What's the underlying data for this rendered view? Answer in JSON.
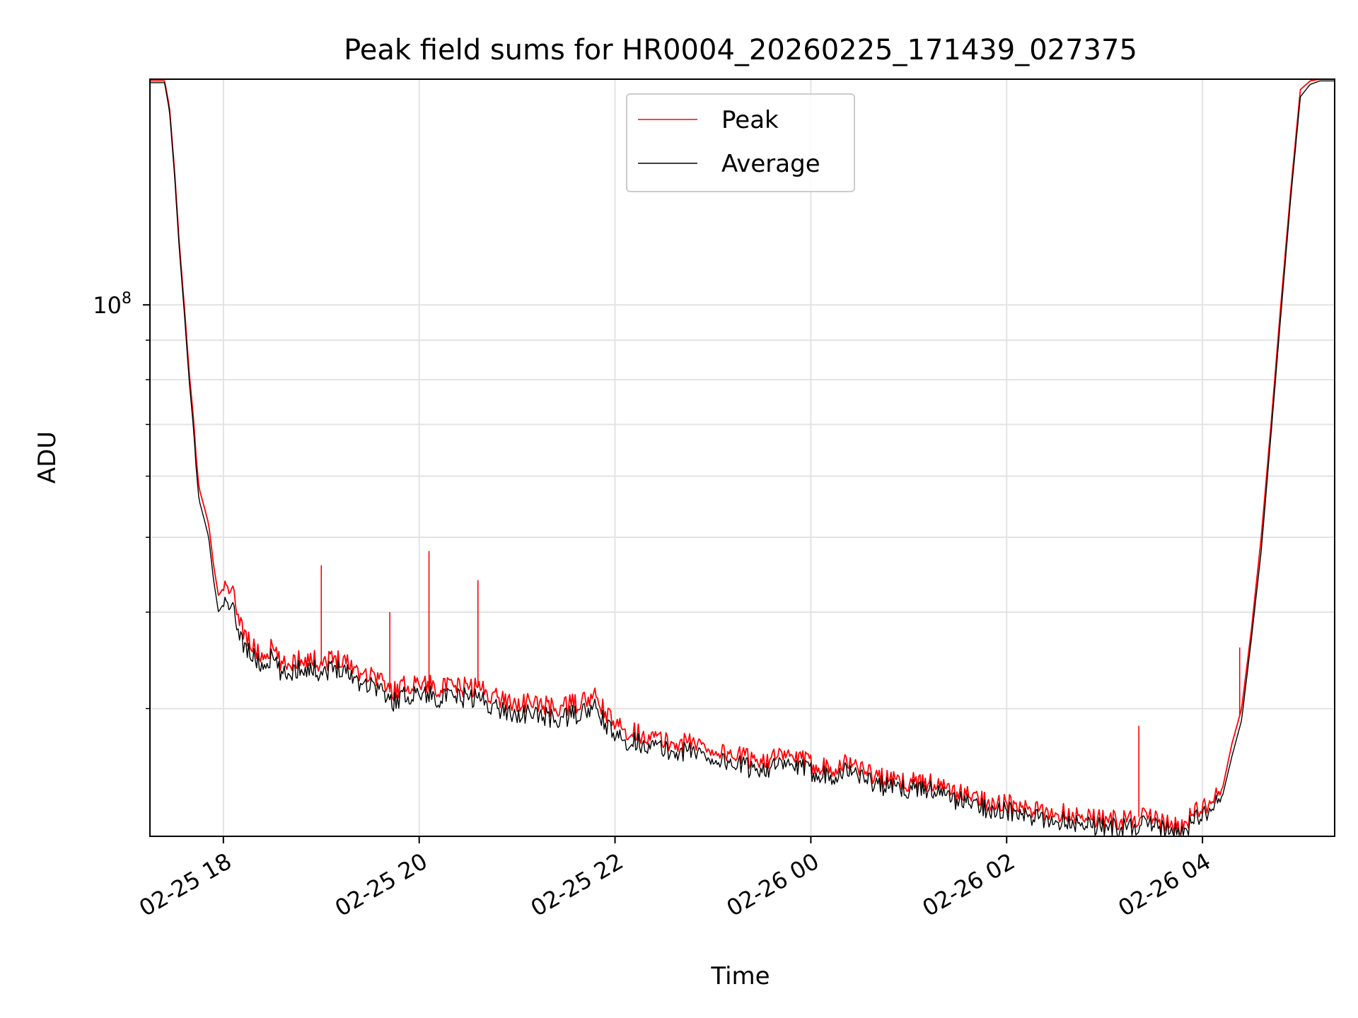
{
  "chart_data": {
    "type": "line",
    "title": "Peak field sums for HR0004_20260225_171439_027375",
    "xlabel": "Time",
    "ylabel": "ADU",
    "yscale": "log",
    "grid": true,
    "legend_position": "top-center",
    "x_unit": "hours since 02-25 18:00",
    "xlim": [
      -0.75,
      11.35
    ],
    "ylim": [
      20500000,
      196000000
    ],
    "x_ticks": [
      0,
      2,
      4,
      6,
      8,
      10
    ],
    "x_tick_labels": [
      "02-25 18",
      "02-25 20",
      "02-25 22",
      "02-26 00",
      "02-26 02",
      "02-26 04"
    ],
    "y_major_ticks": [
      100000000
    ],
    "y_major_tick_labels": [
      "10",
      "8"
    ],
    "y_minor_ticks": [
      30000000,
      40000000,
      50000000,
      60000000,
      70000000,
      80000000,
      90000000,
      200000000
    ],
    "series": [
      {
        "name": "Peak",
        "color": "#ff0000",
        "x": [
          -0.75,
          -0.6,
          -0.55,
          -0.5,
          -0.45,
          -0.4,
          -0.35,
          -0.3,
          -0.28,
          -0.25,
          -0.2,
          -0.15,
          -0.1,
          -0.05,
          0.0,
          0.1,
          0.2,
          0.3,
          0.4,
          0.5,
          0.6,
          0.8,
          1.0,
          1.2,
          1.4,
          1.6,
          1.7,
          1.8,
          2.0,
          2.2,
          2.4,
          2.6,
          2.8,
          3.0,
          3.2,
          3.4,
          3.6,
          3.8,
          4.0,
          4.2,
          4.4,
          4.6,
          4.8,
          5.0,
          5.2,
          5.4,
          5.6,
          5.8,
          6.0,
          6.2,
          6.4,
          6.6,
          6.8,
          7.0,
          7.2,
          7.4,
          7.6,
          7.8,
          8.0,
          8.2,
          8.4,
          8.6,
          8.8,
          9.0,
          9.2,
          9.4,
          9.6,
          9.8,
          9.9,
          10.0,
          10.1,
          10.2,
          10.3,
          10.4,
          10.5,
          10.6,
          10.7,
          10.8,
          10.9,
          11.0,
          11.1,
          11.2,
          11.35
        ],
        "values": [
          195000000,
          195000000,
          180000000,
          150000000,
          120000000,
          100000000,
          82000000,
          70000000,
          64000000,
          58000000,
          55000000,
          52000000,
          46000000,
          42000000,
          43000000,
          42000000,
          38000000,
          36000000,
          35000000,
          36000000,
          34000000,
          35000000,
          34500000,
          35000000,
          33500000,
          33000000,
          31500000,
          32000000,
          32500000,
          32000000,
          32000000,
          32000000,
          31000000,
          30500000,
          30500000,
          30000000,
          30500000,
          31000000,
          28500000,
          28000000,
          27500000,
          27000000,
          27200000,
          26500000,
          26200000,
          25800000,
          25900000,
          26000000,
          25500000,
          25200000,
          25600000,
          24800000,
          24200000,
          24100000,
          24200000,
          23500000,
          23200000,
          22800000,
          22600000,
          22200000,
          22000000,
          22000000,
          21800000,
          21600000,
          21500000,
          21800000,
          21300000,
          21100000,
          22000000,
          22200000,
          22800000,
          23500000,
          27000000,
          30000000,
          38000000,
          50000000,
          70000000,
          100000000,
          140000000,
          190000000,
          195000000,
          196000000,
          196000000
        ]
      },
      {
        "name": "Average",
        "color": "#000000",
        "x": [
          -0.75,
          -0.6,
          -0.55,
          -0.5,
          -0.45,
          -0.4,
          -0.35,
          -0.3,
          -0.28,
          -0.25,
          -0.2,
          -0.15,
          -0.1,
          -0.05,
          0.0,
          0.1,
          0.2,
          0.3,
          0.4,
          0.5,
          0.6,
          0.8,
          1.0,
          1.2,
          1.4,
          1.6,
          1.7,
          1.8,
          2.0,
          2.2,
          2.4,
          2.6,
          2.8,
          3.0,
          3.2,
          3.4,
          3.6,
          3.8,
          4.0,
          4.2,
          4.4,
          4.6,
          4.8,
          5.0,
          5.2,
          5.4,
          5.6,
          5.8,
          6.0,
          6.2,
          6.4,
          6.6,
          6.8,
          7.0,
          7.2,
          7.4,
          7.6,
          7.8,
          8.0,
          8.2,
          8.4,
          8.6,
          8.8,
          9.0,
          9.2,
          9.4,
          9.6,
          9.8,
          9.9,
          10.0,
          10.1,
          10.2,
          10.3,
          10.4,
          10.5,
          10.6,
          10.7,
          10.8,
          10.9,
          11.0,
          11.1,
          11.2,
          11.35
        ],
        "values": [
          194000000,
          194000000,
          178000000,
          148000000,
          118000000,
          98000000,
          80000000,
          68000000,
          62000000,
          56000000,
          53000000,
          50000000,
          44000000,
          40000000,
          41000000,
          40000000,
          36500000,
          35000000,
          34000000,
          35000000,
          33000000,
          34000000,
          33500000,
          34000000,
          32500000,
          32000000,
          30500000,
          31000000,
          31500000,
          31000000,
          31000000,
          31000000,
          30000000,
          29500000,
          29500000,
          29000000,
          29500000,
          30000000,
          27500000,
          27200000,
          26800000,
          26300000,
          26500000,
          25800000,
          25500000,
          25100000,
          25200000,
          25300000,
          24900000,
          24600000,
          25000000,
          24200000,
          23700000,
          23600000,
          23700000,
          23000000,
          22700000,
          22300000,
          22100000,
          21700000,
          21500000,
          21500000,
          21300000,
          21100000,
          21000000,
          21300000,
          20900000,
          20700000,
          21500000,
          21700000,
          22300000,
          23000000,
          26000000,
          29000000,
          37000000,
          48000000,
          68000000,
          97000000,
          137000000,
          186000000,
          193000000,
          195000000,
          195000000
        ]
      }
    ],
    "spikes": [
      {
        "series": "Peak",
        "x": 2.1,
        "value": 48000000
      },
      {
        "series": "Peak",
        "x": 2.6,
        "value": 44000000
      },
      {
        "series": "Peak",
        "x": 1.0,
        "value": 46000000
      },
      {
        "series": "Peak",
        "x": 1.7,
        "value": 40000000
      },
      {
        "series": "Peak",
        "x": 10.38,
        "value": 36000000
      },
      {
        "series": "Peak",
        "x": 9.35,
        "value": 28500000
      }
    ]
  }
}
